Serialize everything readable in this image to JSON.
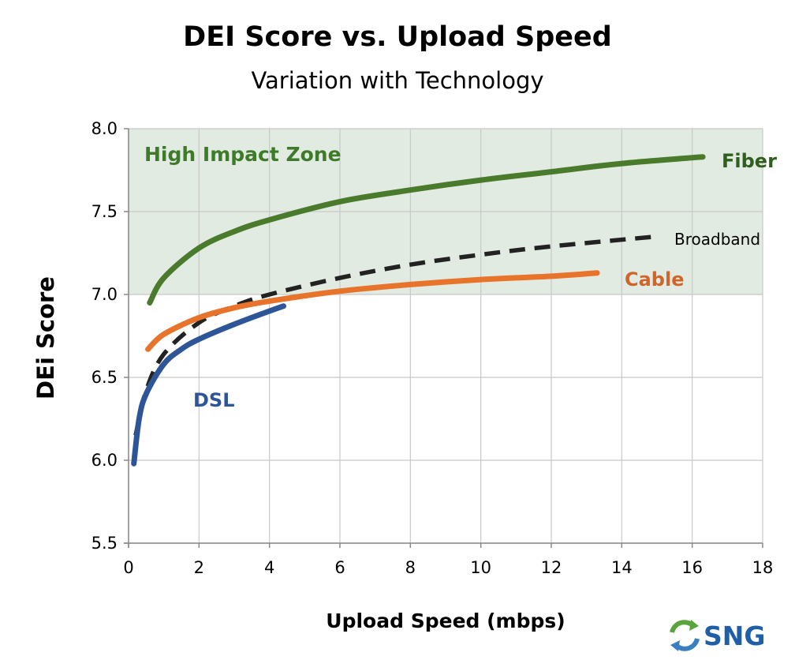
{
  "chart_data": {
    "type": "line",
    "title": "DEI Score vs. Upload Speed",
    "subtitle": "Variation with Technology",
    "xlabel": "Upload Speed (mbps)",
    "ylabel": "DEi Score",
    "xlim": [
      0,
      18
    ],
    "ylim": [
      5.5,
      8.0
    ],
    "xticks": [
      "0",
      "2",
      "4",
      "6",
      "8",
      "10",
      "12",
      "14",
      "16",
      "18"
    ],
    "yticks": [
      "5.5",
      "6.0",
      "6.5",
      "7.0",
      "7.5",
      "8.0"
    ],
    "grid": true,
    "zone": {
      "label": "High Impact Zone",
      "y_from": 7.0,
      "y_to": 8.0,
      "color": "#e2ebe2",
      "label_color": "#3e7a2a"
    },
    "series": [
      {
        "name": "Fiber",
        "color": "#4a7a2c",
        "dash": false,
        "points": [
          [
            0.6,
            6.95
          ],
          [
            1,
            7.1
          ],
          [
            2,
            7.28
          ],
          [
            3,
            7.38
          ],
          [
            4,
            7.45
          ],
          [
            6,
            7.56
          ],
          [
            8,
            7.63
          ],
          [
            10,
            7.69
          ],
          [
            12,
            7.74
          ],
          [
            14,
            7.79
          ],
          [
            16.3,
            7.83
          ]
        ]
      },
      {
        "name": "Broadband",
        "color": "#222222",
        "dash": true,
        "points": [
          [
            0.2,
            6.15
          ],
          [
            0.5,
            6.42
          ],
          [
            1,
            6.64
          ],
          [
            2,
            6.83
          ],
          [
            3,
            6.93
          ],
          [
            4,
            7.0
          ],
          [
            6,
            7.1
          ],
          [
            8,
            7.18
          ],
          [
            10,
            7.24
          ],
          [
            12,
            7.29
          ],
          [
            15,
            7.35
          ]
        ]
      },
      {
        "name": "Cable",
        "color": "#e8732a",
        "dash": false,
        "points": [
          [
            0.55,
            6.67
          ],
          [
            1,
            6.76
          ],
          [
            2,
            6.86
          ],
          [
            3,
            6.92
          ],
          [
            4,
            6.96
          ],
          [
            6,
            7.02
          ],
          [
            8,
            7.06
          ],
          [
            10,
            7.09
          ],
          [
            12,
            7.11
          ],
          [
            13.3,
            7.13
          ]
        ]
      },
      {
        "name": "DSL",
        "color": "#2e5597",
        "dash": false,
        "points": [
          [
            0.15,
            5.98
          ],
          [
            0.3,
            6.25
          ],
          [
            0.5,
            6.4
          ],
          [
            1,
            6.58
          ],
          [
            1.5,
            6.67
          ],
          [
            2,
            6.73
          ],
          [
            3,
            6.82
          ],
          [
            4,
            6.9
          ],
          [
            4.4,
            6.93
          ]
        ]
      }
    ]
  },
  "logo": {
    "text": "SNG"
  }
}
